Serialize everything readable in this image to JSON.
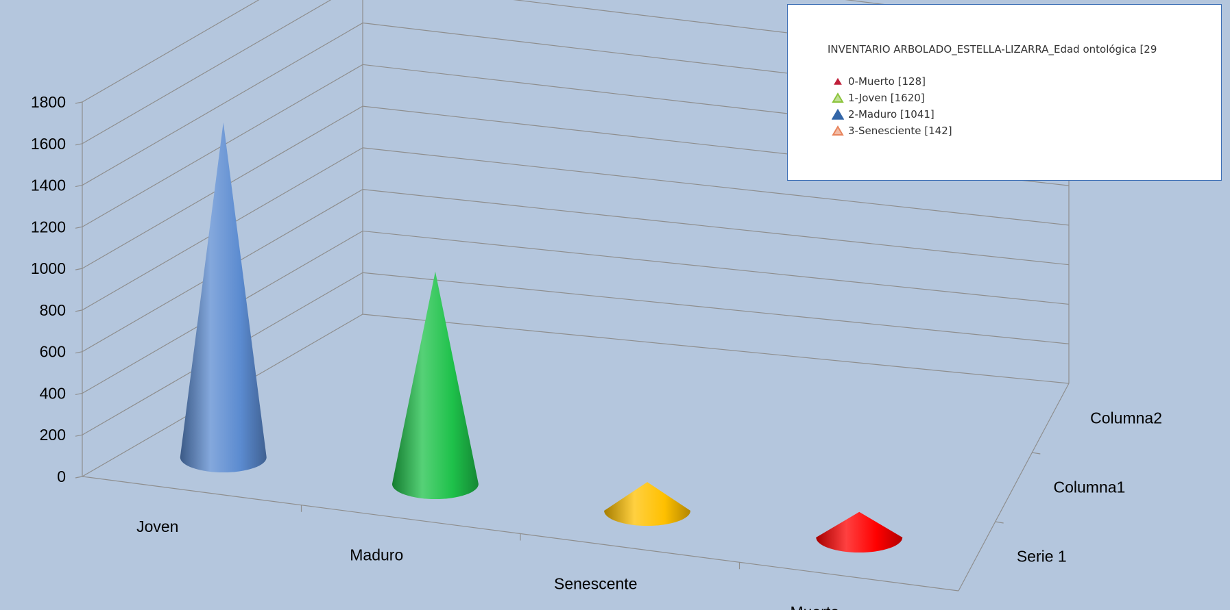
{
  "chart_data": {
    "type": "bar",
    "subtype": "3d-cone",
    "categories": [
      "Joven",
      "Maduro",
      "Senescente",
      "Muerto"
    ],
    "depth_categories": [
      "Serie 1",
      "Columna1",
      "Columna2"
    ],
    "series": [
      {
        "name": "Serie 1",
        "values": [
          1620,
          1041,
          142,
          128
        ]
      }
    ],
    "colors": [
      "#5b8bd0",
      "#1ec14a",
      "#ffc000",
      "#ff0000"
    ],
    "y_ticks": [
      "0",
      "200",
      "400",
      "600",
      "800",
      "1000",
      "1200",
      "1400",
      "1600",
      "1800"
    ],
    "ylim": [
      0,
      1800
    ],
    "grid": true,
    "legend": {
      "position": "top-right",
      "title": "INVENTARIO ARBOLADO_ESTELLA-LIZARRA_Edad ontológica [29",
      "items": [
        {
          "label": "0-Muerto [128]",
          "color": "#c0203a",
          "marker": "small-triangle"
        },
        {
          "label": "1-Joven [1620]",
          "color": "#8cc43c",
          "marker": "triangle"
        },
        {
          "label": "2-Maduro [1041]",
          "color": "#3366a8",
          "marker": "large-triangle"
        },
        {
          "label": "3-Senesciente [142]",
          "color": "#e8845c",
          "marker": "triangle"
        }
      ]
    }
  }
}
